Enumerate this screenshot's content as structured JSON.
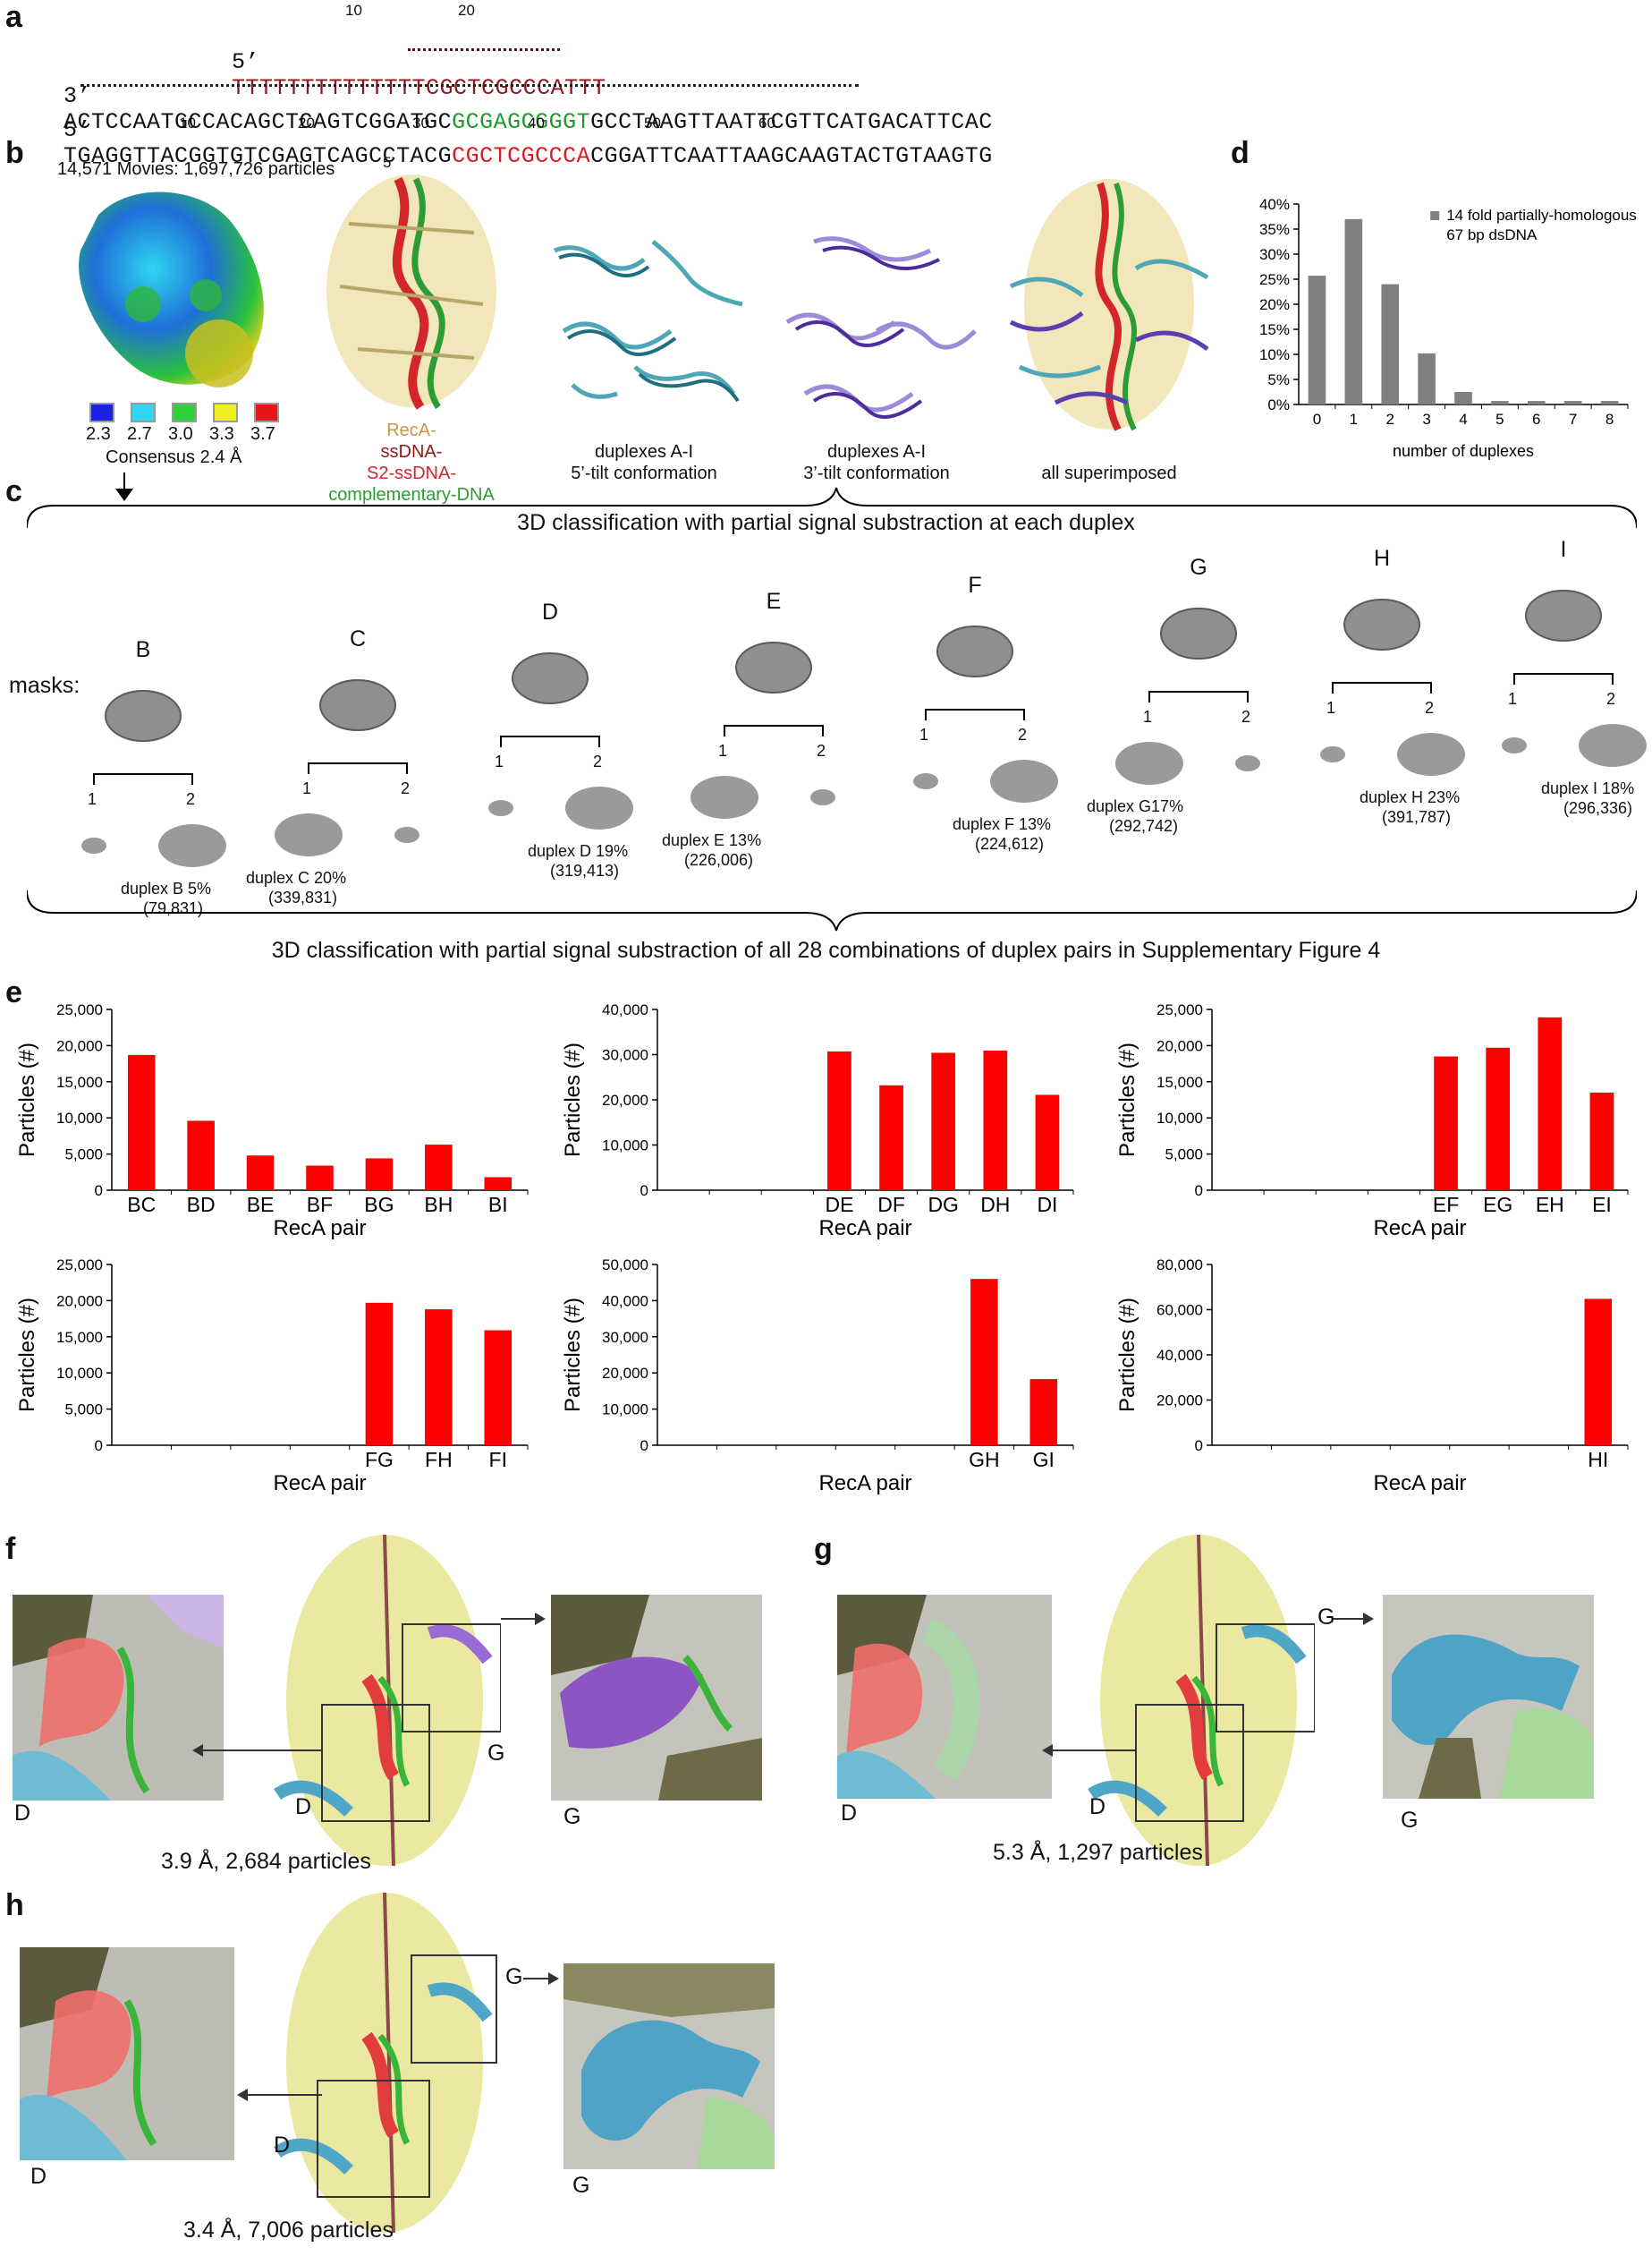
{
  "panel_letters": {
    "a": "a",
    "b": "b",
    "c": "c",
    "d": "d",
    "e": "e",
    "f": "f",
    "g": "g",
    "h": "h"
  },
  "sequences": {
    "top_prefix": "5’",
    "top_strand": "TTTTTTTTTTTTTTCGCTCGCCCATTT",
    "top_ticks": [
      "10",
      "20"
    ],
    "mid_prefix": "3’",
    "mid_black1": "ACTCCAATGCCACAGCTCAGTCGGATGC",
    "mid_green": "GCGAGCGGGT",
    "mid_black2": "GCCTAAGTTAATTCGTTCATGACATTCAC",
    "bot_prefix": "5’",
    "bot_black1": "TGAGGTTACGGTGTCGAGTCAGCCTACG",
    "bot_red": "CGCTCGCCCA",
    "bot_black2": "CGGATTCAATTAAGCAAGTACTGTAAGTG",
    "bot_ticks": [
      "10",
      "20",
      "30",
      "40",
      "50",
      "60"
    ]
  },
  "panel_b": {
    "movies_text": "14,571 Movies: 1,697,726 particles",
    "five_prime": "5’",
    "scale_values": [
      "2.3",
      "2.7",
      "3.0",
      "3.3",
      "3.7"
    ],
    "scale_colors": [
      "#1a24e0",
      "#2fd6f0",
      "#2fd13b",
      "#f2ef1e",
      "#e8161b"
    ],
    "consensus": "Consensus 2.4 Å",
    "recA_label": "RecA-",
    "ssdna_label": "ssDNA-",
    "s2_label": "S2-ssDNA-",
    "comp_label": "complementary-DNA",
    "dup5_l1": "duplexes A-I",
    "dup5_l2": "5’-tilt conformation",
    "dup3_l1": "duplexes A-I",
    "dup3_l2": "3’-tilt conformation",
    "superimposed": "all superimposed"
  },
  "panel_c": {
    "top_caption": "3D classification with partial signal substraction at each duplex",
    "masks_label": "masks:",
    "bottom_caption": "3D classification with partial signal substraction of all 28 combinations of duplex pairs in Supplementary Figure 4",
    "duplexes": [
      {
        "letter": "B",
        "l1": "duplex B 5%",
        "l2": "(79,831)"
      },
      {
        "letter": "C",
        "l1": "duplex C 20%",
        "l2": "(339,831)"
      },
      {
        "letter": "D",
        "l1": "duplex D 19%",
        "l2": "(319,413)"
      },
      {
        "letter": "E",
        "l1": "duplex E 13%",
        "l2": "(226,006)"
      },
      {
        "letter": "F",
        "l1": "duplex F 13%",
        "l2": "(224,612)"
      },
      {
        "letter": "G",
        "l1": "duplex G17%",
        "l2": "(292,742)"
      },
      {
        "letter": "H",
        "l1": "duplex H 23%",
        "l2": "(391,787)"
      },
      {
        "letter": "I",
        "l1": "duplex I 18%",
        "l2": "(296,336)"
      }
    ],
    "one": "1",
    "two": "2"
  },
  "chart_data": [
    {
      "type": "bar",
      "title": "",
      "legend": "14 fold partially-homologous 67 bp dsDNA",
      "legend_l1": "14 fold partially-homologous",
      "legend_l2": "67 bp dsDNA",
      "categories": [
        "0",
        "1",
        "2",
        "3",
        "4",
        "5",
        "6",
        "7",
        "8"
      ],
      "values": [
        25.7,
        37.0,
        24.0,
        10.2,
        2.5,
        0.7,
        0.7,
        0.7,
        0.7
      ],
      "xlabel": "number of duplexes",
      "ylabel": "",
      "ylim": [
        0,
        40
      ],
      "yticks": [
        "0%",
        "5%",
        "10%",
        "15%",
        "20%",
        "25%",
        "30%",
        "35%",
        "40%"
      ],
      "color": "#808080"
    },
    {
      "type": "bar",
      "categories": [
        "BC",
        "BD",
        "BE",
        "BF",
        "BG",
        "BH",
        "BI"
      ],
      "values": [
        18700,
        9600,
        4800,
        3400,
        4400,
        6300,
        1800
      ],
      "ylim": [
        0,
        25000
      ],
      "yticks": [
        "0",
        "5,000",
        "10,000",
        "15,000",
        "20,000",
        "25,000"
      ],
      "xlabel": "RecA pair",
      "ylabel": "Particles (#)",
      "color": "#ff0000"
    },
    {
      "type": "bar",
      "categories": [
        "",
        "",
        "",
        "DE",
        "DF",
        "DG",
        "DH",
        "DI"
      ],
      "values": [
        0,
        0,
        0,
        30700,
        23200,
        30400,
        30900,
        21100
      ],
      "ylim": [
        0,
        40000
      ],
      "yticks": [
        "0",
        "10,000",
        "20,000",
        "30,000",
        "40,000"
      ],
      "xlabel": "RecA pair",
      "ylabel": "Particles (#)",
      "color": "#ff0000"
    },
    {
      "type": "bar",
      "categories": [
        "",
        "",
        "",
        "",
        "EF",
        "EG",
        "EH",
        "EI"
      ],
      "values": [
        0,
        0,
        0,
        0,
        18500,
        19700,
        23900,
        13500
      ],
      "ylim": [
        0,
        25000
      ],
      "yticks": [
        "0",
        "5,000",
        "10,000",
        "15,000",
        "20,000",
        "25,000"
      ],
      "xlabel": "RecA pair",
      "ylabel": "Particles (#)",
      "color": "#ff0000"
    },
    {
      "type": "bar",
      "categories": [
        "",
        "",
        "",
        "",
        "FG",
        "FH",
        "FI"
      ],
      "values": [
        0,
        0,
        0,
        0,
        19700,
        18800,
        15900
      ],
      "ylim": [
        0,
        25000
      ],
      "yticks": [
        "0",
        "5,000",
        "10,000",
        "15,000",
        "20,000",
        "25,000"
      ],
      "xlabel": "RecA pair",
      "ylabel": "Particles (#)",
      "color": "#ff0000"
    },
    {
      "type": "bar",
      "categories": [
        "",
        "",
        "",
        "",
        "",
        "GH",
        "GI"
      ],
      "values": [
        0,
        0,
        0,
        0,
        0,
        46000,
        18300
      ],
      "ylim": [
        0,
        50000
      ],
      "yticks": [
        "0",
        "10,000",
        "20,000",
        "30,000",
        "40,000",
        "50,000"
      ],
      "xlabel": "RecA pair",
      "ylabel": "Particles (#)",
      "color": "#ff0000"
    },
    {
      "type": "bar",
      "categories": [
        "",
        "",
        "",
        "",
        "",
        "",
        "HI"
      ],
      "values": [
        0,
        0,
        0,
        0,
        0,
        0,
        64800
      ],
      "ylim": [
        0,
        80000
      ],
      "yticks": [
        "0",
        "20,000",
        "40,000",
        "60,000",
        "80,000"
      ],
      "xlabel": "RecA pair",
      "ylabel": "Particles (#)",
      "color": "#ff0000"
    }
  ],
  "panel_f": {
    "res": "3.9 Å, 2,684 particles",
    "D": "D",
    "G": "G"
  },
  "panel_g": {
    "res": "5.3 Å, 1,297 particles",
    "D": "D",
    "G": "G"
  },
  "panel_h": {
    "res": "3.4 Å, 7,006 particles",
    "D": "D",
    "G": "G"
  }
}
